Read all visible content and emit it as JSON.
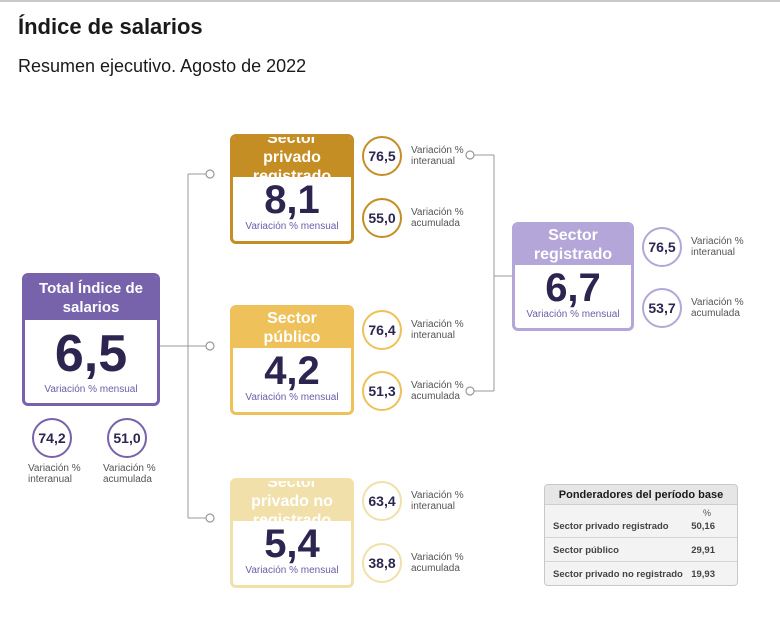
{
  "header": {
    "title": "Índice de salarios",
    "subtitle": "Resumen ejecutivo. Agosto de 2022"
  },
  "colors": {
    "purple": "#7762ac",
    "purple_light": "#b4a6d8",
    "gold": "#c58e25",
    "yellow": "#eec15a",
    "pale": "#f2e0ab"
  },
  "total": {
    "title": "Total Índice de salarios",
    "value": "6,5",
    "caption": "Variación % mensual",
    "interanual": "74,2",
    "interanual_label": "Variación % interanual",
    "acumulada": "51,0",
    "acumulada_label": "Variación % acumulada"
  },
  "privado": {
    "title": "Sector privado registrado",
    "value": "8,1",
    "caption": "Variación % mensual",
    "interanual": "76,5",
    "interanual_label": "Variación % interanual",
    "acumulada": "55,0",
    "acumulada_label": "Variación % acumulada"
  },
  "publico": {
    "title": "Sector público",
    "value": "4,2",
    "caption": "Variación % mensual",
    "interanual": "76,4",
    "interanual_label": "Variación % interanual",
    "acumulada": "51,3",
    "acumulada_label": "Variación % acumulada"
  },
  "noregistrado": {
    "title": "Sector privado no registrado",
    "value": "5,4",
    "caption": "Variación % mensual",
    "interanual": "63,4",
    "interanual_label": "Variación % interanual",
    "acumulada": "38,8",
    "acumulada_label": "Variación % acumulada"
  },
  "registrado": {
    "title": "Sector registrado",
    "value": "6,7",
    "caption": "Variación % mensual",
    "interanual": "76,5",
    "interanual_label": "Variación % interanual",
    "acumulada": "53,7",
    "acumulada_label": "Variación % acumulada"
  },
  "ponderadores": {
    "title": "Ponderadores del período base",
    "unit": "%",
    "rows": [
      {
        "label": "Sector privado registrado",
        "value": "50,16"
      },
      {
        "label": "Sector público",
        "value": "29,91"
      },
      {
        "label": "Sector privado no registrado",
        "value": "19,93"
      }
    ]
  }
}
